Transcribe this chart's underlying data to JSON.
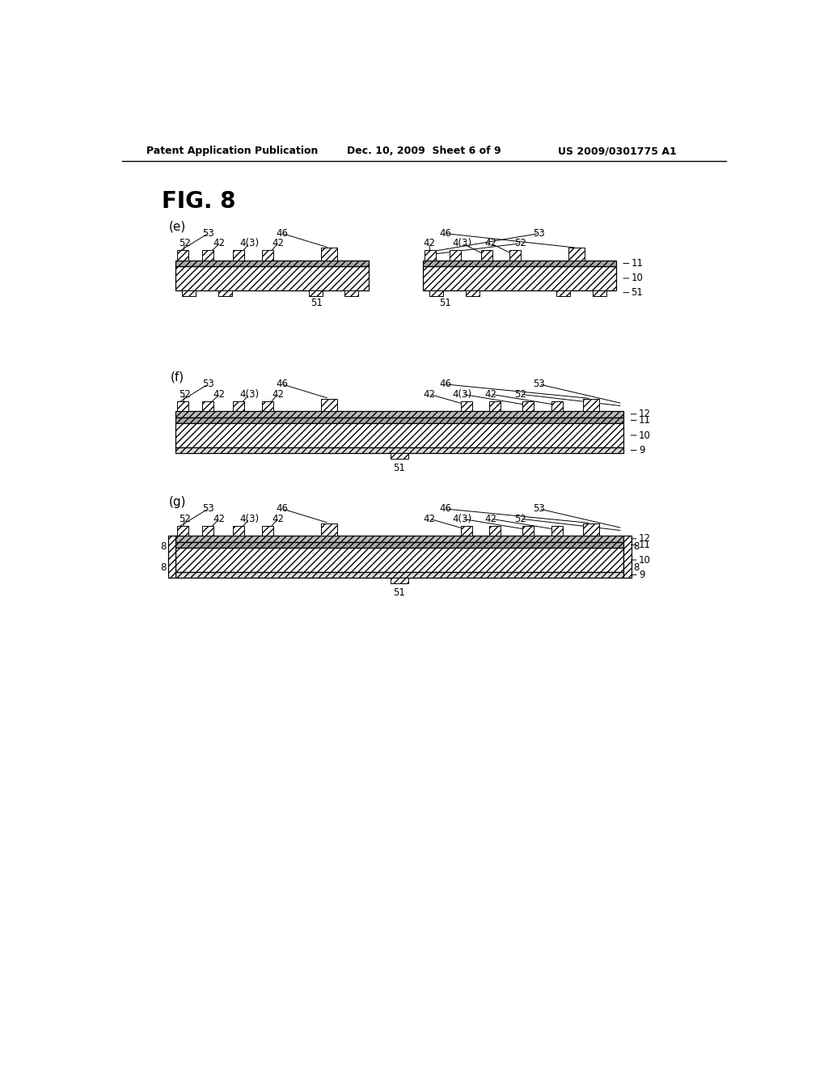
{
  "bg_color": "#ffffff",
  "header_left": "Patent Application Publication",
  "header_mid": "Dec. 10, 2009  Sheet 6 of 9",
  "header_right": "US 2009/0301775 A1",
  "fig_label": "FIG. 8",
  "panels": [
    "(e)",
    "(f)",
    "(g)"
  ],
  "hatch_dense": "////",
  "line_color": "#000000"
}
